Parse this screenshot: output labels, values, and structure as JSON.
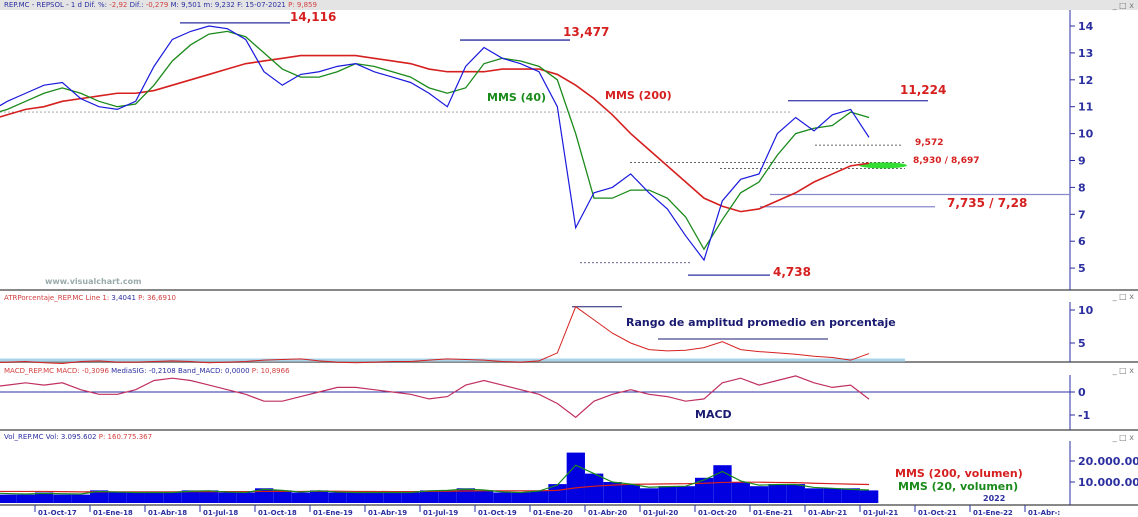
{
  "header": {
    "symbol": "REP.MC - REPSOL - 1 d",
    "dif_pct_label": "Dif. %:",
    "dif_pct": "-2,92",
    "dif_label": "Dif.:",
    "dif": "-0,279",
    "max_label": "M: 9,501",
    "min_label": "m: 9,232",
    "date_label": "F: 15-07-2021",
    "price_label": "P: 9,859"
  },
  "atr_header": {
    "name": "ATRPorcentaje_REP.MC",
    "line_label": "Line 1:",
    "line": "3,4041",
    "p": "P: 36,6910"
  },
  "macd_header": {
    "name": "MACD_REP.MC",
    "macd_label": "MACD:",
    "macd": "-0,3096",
    "sig_label": "MediaSIG:",
    "sig": "-0,2108",
    "band_label": "Band_MACD:",
    "band": "0,0000",
    "p": "P: 10,8966"
  },
  "vol_header": {
    "name": "Vol_REP.MC",
    "vol_label": "Vol:",
    "vol": "3.095.602",
    "p": "P: 160.775.367"
  },
  "watermark": "www.visualchart.com",
  "window_controls": "_ □ x",
  "annotations": {
    "high1": "14,116",
    "high2": "13,477",
    "high3": "11,224",
    "level1": "9,572",
    "level2": "8,930 / 8,697",
    "level3": "7,735 / 7,28",
    "low1": "4,738",
    "mms40": "MMS (40)",
    "mms200": "MMS (200)",
    "atr_title": "Rango de amplitud promedio en porcentaje",
    "macd_title": "MACD",
    "vol_mms200": "MMS (200, volumen)",
    "vol_mms20": "MMS (20, volumen)",
    "year_label": "2022"
  },
  "colors": {
    "price": "#1a1adc",
    "mms40": "#1a8a1a",
    "mms200": "#d62020",
    "axis": "#2b2fa0",
    "atr": "#d62020",
    "atr_base": "#a8d4ea",
    "volume": "#0000e0",
    "support_band": "#33dd33"
  },
  "chart_data": {
    "type": "line",
    "x_ticks": [
      "l-17",
      "01-Oct-17",
      "01-Ene-18",
      "01-Abr-18",
      "01-Jul-18",
      "01-Oct-18",
      "01-Ene-19",
      "01-Abr-19",
      "01-Jul-19",
      "01-Oct-19",
      "01-Ene-20",
      "01-Abr-20",
      "01-Jul-20",
      "01-Oct-20",
      "01-Ene-21",
      "01-Abr-21",
      "01-Jul-21",
      "01-Oct-21",
      "01-Ene-22",
      "01-Abr-:"
    ],
    "price_axis": {
      "ticks": [
        "14",
        "13",
        "12",
        "11",
        "10",
        "9",
        "8",
        "7",
        "6",
        "5"
      ],
      "ylim": [
        4.2,
        14.6
      ]
    },
    "atr_axis": {
      "ticks": [
        "10",
        "5"
      ]
    },
    "macd_axis": {
      "ticks": [
        "0",
        "-1"
      ]
    },
    "vol_axis": {
      "ticks": [
        "20.000.000",
        "10.000.000"
      ]
    },
    "months": [
      "2017-07",
      "2017-08",
      "2017-09",
      "2017-10",
      "2017-11",
      "2017-12",
      "2018-01",
      "2018-02",
      "2018-03",
      "2018-04",
      "2018-05",
      "2018-06",
      "2018-07",
      "2018-08",
      "2018-09",
      "2018-10",
      "2018-11",
      "2018-12",
      "2019-01",
      "2019-02",
      "2019-03",
      "2019-04",
      "2019-05",
      "2019-06",
      "2019-07",
      "2019-08",
      "2019-09",
      "2019-10",
      "2019-11",
      "2019-12",
      "2020-01",
      "2020-02",
      "2020-03",
      "2020-04",
      "2020-05",
      "2020-06",
      "2020-07",
      "2020-08",
      "2020-09",
      "2020-10",
      "2020-11",
      "2020-12",
      "2021-01",
      "2021-02",
      "2021-03",
      "2021-04",
      "2021-05",
      "2021-06",
      "2021-07"
    ],
    "series": [
      {
        "name": "REP.MC",
        "values": [
          10.8,
          11.2,
          11.5,
          11.8,
          11.9,
          11.3,
          11.0,
          10.9,
          11.2,
          12.5,
          13.5,
          13.8,
          14.0,
          13.9,
          13.5,
          12.3,
          11.8,
          12.2,
          12.3,
          12.5,
          12.6,
          12.3,
          12.1,
          11.9,
          11.5,
          11.0,
          12.5,
          13.2,
          12.8,
          12.6,
          12.3,
          11.0,
          6.5,
          7.8,
          8.0,
          8.5,
          7.8,
          7.2,
          6.2,
          5.3,
          7.5,
          8.3,
          8.5,
          10.0,
          10.6,
          10.1,
          10.7,
          10.9,
          9.86
        ]
      },
      {
        "name": "MMS (40)",
        "values": [
          10.7,
          10.9,
          11.2,
          11.5,
          11.7,
          11.5,
          11.2,
          11.0,
          11.1,
          11.8,
          12.7,
          13.3,
          13.7,
          13.8,
          13.6,
          13.0,
          12.4,
          12.1,
          12.1,
          12.3,
          12.6,
          12.5,
          12.3,
          12.1,
          11.7,
          11.5,
          11.7,
          12.6,
          12.8,
          12.7,
          12.5,
          12.0,
          10.0,
          7.6,
          7.6,
          7.9,
          7.9,
          7.6,
          6.9,
          5.7,
          6.8,
          7.8,
          8.2,
          9.2,
          10.0,
          10.2,
          10.3,
          10.8,
          10.6
        ]
      },
      {
        "name": "MMS (200)",
        "values": [
          10.5,
          10.7,
          10.9,
          11.0,
          11.2,
          11.3,
          11.4,
          11.5,
          11.5,
          11.6,
          11.8,
          12.0,
          12.2,
          12.4,
          12.6,
          12.7,
          12.8,
          12.9,
          12.9,
          12.9,
          12.9,
          12.8,
          12.7,
          12.6,
          12.4,
          12.3,
          12.3,
          12.3,
          12.4,
          12.4,
          12.4,
          12.2,
          11.8,
          11.3,
          10.7,
          10.0,
          9.4,
          8.8,
          8.2,
          7.6,
          7.3,
          7.1,
          7.2,
          7.5,
          7.8,
          8.2,
          8.5,
          8.8,
          8.9
        ]
      }
    ],
    "atr": [
      2.0,
      2.1,
      2.2,
      2.0,
      1.9,
      2.2,
      2.3,
      2.1,
      2.1,
      2.2,
      2.3,
      2.2,
      2.0,
      2.1,
      2.2,
      2.4,
      2.5,
      2.6,
      2.3,
      2.1,
      2.0,
      2.1,
      2.2,
      2.2,
      2.4,
      2.6,
      2.5,
      2.4,
      2.2,
      2.1,
      2.3,
      3.5,
      10.5,
      8.5,
      6.5,
      5.0,
      4.0,
      3.8,
      3.9,
      4.3,
      5.2,
      4.0,
      3.7,
      3.5,
      3.3,
      3.0,
      2.8,
      2.4,
      3.4
    ],
    "macd": [
      0.2,
      0.3,
      0.4,
      0.3,
      0.4,
      0.1,
      -0.1,
      -0.1,
      0.1,
      0.5,
      0.6,
      0.5,
      0.3,
      0.1,
      -0.1,
      -0.4,
      -0.4,
      -0.2,
      0.0,
      0.2,
      0.2,
      0.1,
      0.0,
      -0.1,
      -0.3,
      -0.2,
      0.3,
      0.5,
      0.3,
      0.1,
      -0.1,
      -0.5,
      -1.1,
      -0.4,
      -0.1,
      0.1,
      -0.1,
      -0.2,
      -0.4,
      -0.3,
      0.4,
      0.6,
      0.3,
      0.5,
      0.7,
      0.4,
      0.2,
      0.3,
      -0.31
    ],
    "volume_millions": [
      5,
      4,
      4,
      5,
      4,
      4,
      6,
      5,
      5,
      5,
      5,
      6,
      6,
      5,
      5,
      7,
      6,
      5,
      6,
      5,
      5,
      5,
      5,
      5,
      6,
      6,
      7,
      6,
      5,
      5,
      6,
      9,
      24,
      14,
      10,
      9,
      7,
      8,
      8,
      12,
      18,
      10,
      8,
      9,
      9,
      7,
      7,
      7,
      6
    ],
    "volume_mms200": [
      5.5,
      5.5,
      5.5,
      5.5,
      5.4,
      5.3,
      5.3,
      5.3,
      5.3,
      5.3,
      5.3,
      5.4,
      5.4,
      5.4,
      5.4,
      5.5,
      5.5,
      5.5,
      5.6,
      5.6,
      5.5,
      5.5,
      5.4,
      5.4,
      5.5,
      5.6,
      5.7,
      5.8,
      5.8,
      5.8,
      5.8,
      6.0,
      7.2,
      8.0,
      8.5,
      8.9,
      9.0,
      9.1,
      9.2,
      9.4,
      9.8,
      9.9,
      9.9,
      9.8,
      9.7,
      9.4,
      9.2,
      9.0,
      8.8
    ],
    "volume_mms20": [
      4.8,
      4.5,
      4.3,
      4.6,
      4.4,
      4.3,
      5.5,
      5.2,
      5.0,
      5.0,
      5.0,
      5.6,
      5.8,
      5.2,
      5.0,
      6.5,
      6.0,
      5.2,
      5.8,
      5.2,
      5.0,
      5.0,
      5.0,
      5.0,
      5.8,
      6.0,
      6.6,
      6.2,
      5.3,
      5.0,
      5.7,
      8.5,
      18,
      14,
      10,
      9,
      7.5,
      7.8,
      8,
      11,
      15,
      10.5,
      8.5,
      8.8,
      8.8,
      7.4,
      7,
      6.5,
      6.2
    ]
  }
}
